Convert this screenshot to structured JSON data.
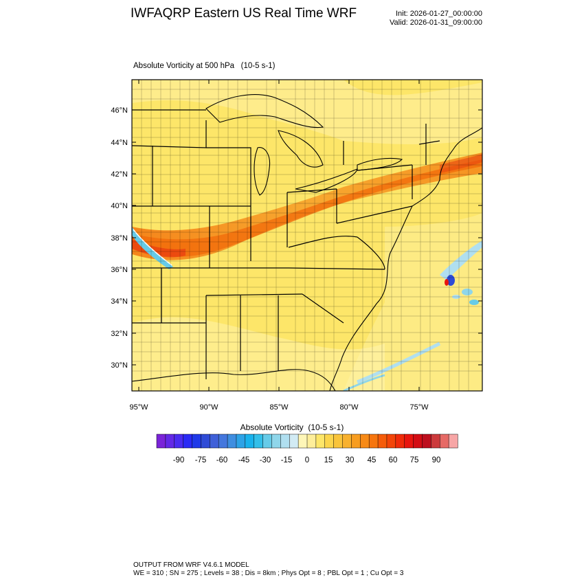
{
  "header": {
    "title": "IWFAQRP Eastern US Real Time WRF",
    "init": "Init: 2026-01-27_00:00:00",
    "valid": "Valid: 2026-01-31_09:00:00"
  },
  "map": {
    "field_title": "Absolute Vorticity at 500 hPa   (10-5 s-1)",
    "lat_labels": [
      "46°N",
      "44°N",
      "42°N",
      "40°N",
      "38°N",
      "36°N",
      "34°N",
      "32°N",
      "30°N"
    ],
    "lon_labels": [
      "95°W",
      "90°W",
      "85°W",
      "80°W",
      "75°W"
    ],
    "colors": {
      "base": "#fde669",
      "frame": "#000000"
    }
  },
  "colorbar": {
    "title": "Absolute Vorticity  (10-5 s-1)",
    "tick_labels": [
      "-90",
      "-75",
      "-60",
      "-45",
      "-30",
      "-15",
      "0",
      "15",
      "30",
      "45",
      "60",
      "75",
      "90"
    ],
    "colors": [
      "#7a24d8",
      "#6329e6",
      "#4a2cf0",
      "#2a2af5",
      "#1f39e8",
      "#2f4bd6",
      "#3f60d8",
      "#4477dd",
      "#3f8ee0",
      "#2da3e6",
      "#19b2ec",
      "#33bfe9",
      "#66cbe8",
      "#8fd6ea",
      "#b0dff0",
      "#d2ebf4",
      "#fef6b8",
      "#feee9a",
      "#fde669",
      "#fbd54c",
      "#f9c43a",
      "#f8b12e",
      "#f79d20",
      "#f78a16",
      "#f6750e",
      "#f55c0a",
      "#f34509",
      "#f02b0a",
      "#e8150f",
      "#d30d14",
      "#bd0f1e",
      "#cc3a3c",
      "#e66a66",
      "#f7a6a6"
    ]
  },
  "footer": {
    "line1": "OUTPUT FROM WRF V4.6.1 MODEL",
    "line2": "WE = 310 ; SN = 275 ; Levels = 38 ; Dis = 8km ; Phys Opt = 8 ; PBL Opt = 1 ; Cu Opt = 3"
  }
}
